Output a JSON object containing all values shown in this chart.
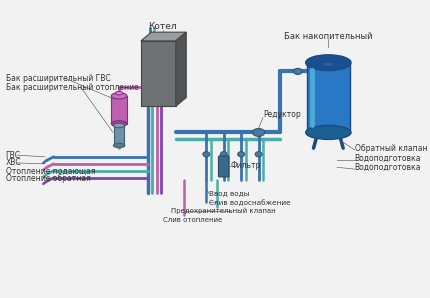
{
  "bg_color": "#f2f2f2",
  "labels": {
    "kotel": "Котел",
    "bak_nakopitelny": "Бак накопительный",
    "reduktor": "Редуктор",
    "bak_gvs": "Бак расширительный ГВС",
    "bak_otoplenie": "Бак расширительный отопление",
    "gvs": "ГВС",
    "hvs": "ХВС",
    "otoplenie_pod": "Отопление подающая",
    "otoplenie_obr": "Отопление обратная",
    "filtr": "Фильтр",
    "vvod_vody": "Ввод воды",
    "sliv_vodos": "Слив водоснабжение",
    "pred_klapan": "Предохранительный клапан",
    "sliv_otoplenie": "Слив отопление",
    "obratny_klapan": "Обратный клапан",
    "vodopodgotovka1": "Водоподготовка",
    "vodopodgotovka2": "Водоподготовка"
  },
  "colors": {
    "boiler_front": "#6e7275",
    "boiler_top": "#9a9da0",
    "boiler_side": "#515456",
    "pipe_blue": "#3a72b0",
    "pipe_teal": "#4aada8",
    "pipe_pink": "#c060a8",
    "pipe_purple": "#8045b0",
    "pipe_red": "#b83030",
    "tank_big_body": "#2878c5",
    "tank_big_dark": "#1a5090",
    "tank_big_light": "#4aaada",
    "tank_pink_body": "#c060b0",
    "tank_pink_top": "#d070c5",
    "tank_pink_bot": "#a04095",
    "tank_gray_body": "#7090a5",
    "tank_gray_top": "#8aa0b5",
    "fitting_color": "#4a7a9a",
    "text_color": "#333333",
    "line_color": "#666666"
  }
}
